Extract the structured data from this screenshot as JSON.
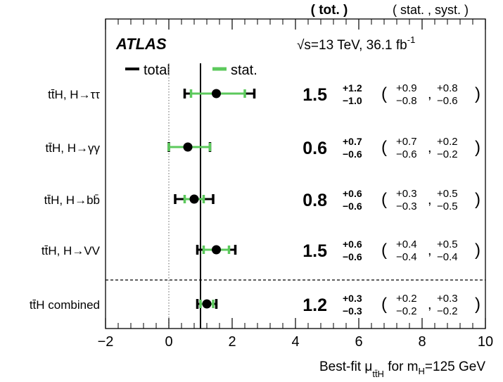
{
  "chart_data": {
    "type": "scatter",
    "subtype": "forest-plot",
    "experiment": "ATLAS",
    "energy": "√s=13 TeV, 36.1 fb",
    "lumi_exponent": "-1",
    "column_header_total": "( tot. )",
    "column_header_components": "( stat. , syst. )",
    "legend": {
      "total": "total",
      "stat": "stat."
    },
    "colors": {
      "total": "#000000",
      "stat": "#5cc95c",
      "sm_line": "#000000",
      "zero_line": "#888888"
    },
    "xlim": [
      -2,
      10
    ],
    "x_ticks": [
      "−2",
      "0",
      "2",
      "4",
      "6",
      "8",
      "10"
    ],
    "x_tick_values": [
      -2,
      0,
      2,
      4,
      6,
      8,
      10
    ],
    "sm_value": 1,
    "xlabel": {
      "main": "Best-fit μ",
      "sub": "tt̄H",
      "rest": " for m",
      "sub2": "H",
      "rest2": "=125 GeV"
    },
    "rows": [
      {
        "label": "tt̄H, H→ττ",
        "value": 1.5,
        "value_label": "1.5",
        "tot_up": "+1.2",
        "tot_dn": "−1.0",
        "stat_up": "+0.9",
        "stat_dn": "−0.8",
        "syst_up": "+0.8",
        "syst_dn": "−0.6",
        "total_range": [
          0.5,
          2.7
        ],
        "stat_range": [
          0.7,
          2.4
        ]
      },
      {
        "label": "tt̄H, H→γγ",
        "value": 0.6,
        "value_label": "0.6",
        "tot_up": "+0.7",
        "tot_dn": "−0.6",
        "stat_up": "+0.7",
        "stat_dn": "−0.6",
        "syst_up": "+0.2",
        "syst_dn": "−0.2",
        "total_range": [
          0.0,
          1.3
        ],
        "stat_range": [
          0.0,
          1.3
        ]
      },
      {
        "label": "tt̄H, H→bb̄",
        "value": 0.8,
        "value_label": "0.8",
        "tot_up": "+0.6",
        "tot_dn": "−0.6",
        "stat_up": "+0.3",
        "stat_dn": "−0.3",
        "syst_up": "+0.5",
        "syst_dn": "−0.5",
        "total_range": [
          0.2,
          1.4
        ],
        "stat_range": [
          0.5,
          1.1
        ]
      },
      {
        "label": "tt̄H, H→VV",
        "value": 1.5,
        "value_label": "1.5",
        "tot_up": "+0.6",
        "tot_dn": "−0.6",
        "stat_up": "+0.4",
        "stat_dn": "−0.4",
        "syst_up": "+0.5",
        "syst_dn": "−0.4",
        "total_range": [
          0.9,
          2.1
        ],
        "stat_range": [
          1.1,
          1.9
        ]
      },
      {
        "label": "tt̄H combined",
        "value": 1.2,
        "value_label": "1.2",
        "tot_up": "+0.3",
        "tot_dn": "−0.3",
        "stat_up": "+0.2",
        "stat_dn": "−0.2",
        "syst_up": "+0.3",
        "syst_dn": "−0.2",
        "total_range": [
          0.9,
          1.5
        ],
        "stat_range": [
          1.0,
          1.4
        ]
      }
    ]
  }
}
